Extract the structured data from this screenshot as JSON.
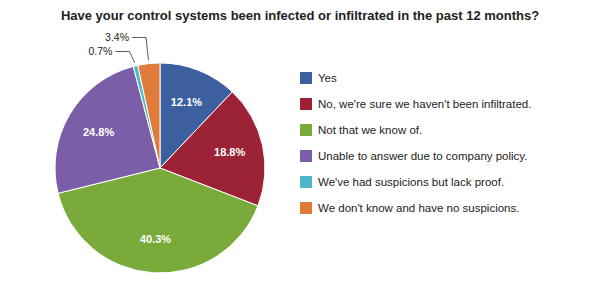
{
  "chart_data": {
    "type": "pie",
    "title": "Have your control systems been infected or infiltrated in the past 12 months?",
    "categories": [
      "Yes",
      "No, we're sure we haven't been infiltrated.",
      "Not that we know of.",
      "Unable to answer due to company policy.",
      "We've had suspicions but lack proof.",
      "We don't know and have no suspicions."
    ],
    "values": [
      12.1,
      18.8,
      40.3,
      24.8,
      0.7,
      3.4
    ],
    "value_labels": [
      "12.1%",
      "18.8%",
      "40.3%",
      "24.8%",
      "0.7%",
      "3.4%"
    ],
    "colors": [
      "#3c5fa0",
      "#9b2335",
      "#7aaa3a",
      "#7b5ea7",
      "#4db8c8",
      "#e07b39"
    ],
    "data_labels": true,
    "legend": "right"
  }
}
